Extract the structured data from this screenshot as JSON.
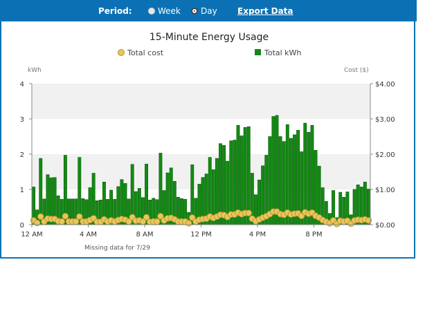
{
  "toolbar": {
    "period_label": "Period:",
    "options": [
      "Week",
      "Day"
    ],
    "selected": "Day",
    "export_label": "Export Data"
  },
  "colors": {
    "header_bg": "#0b71b4",
    "bar_fill": "#138a13",
    "cost_marker": "#e8c65c",
    "band": "#f1f1f1"
  },
  "chart_data": {
    "type": "bar",
    "title": "15-Minute Energy Usage",
    "legend": {
      "items": [
        "Total cost",
        "Total kWh"
      ],
      "placement": "top"
    },
    "ylabel_left": "kWh",
    "ylabel_right": "Cost ($)",
    "ylim_left": [
      0,
      4
    ],
    "ylim_right": [
      0,
      4
    ],
    "left_ticks": [
      "0",
      "1",
      "2",
      "3",
      "4"
    ],
    "right_ticks": [
      "$0.00",
      "$1.00",
      "$2.00",
      "$3.00",
      "$4.00"
    ],
    "x_ticks": [
      {
        "hour": 0,
        "label": "12 AM"
      },
      {
        "hour": 4,
        "label": "4 AM"
      },
      {
        "hour": 8,
        "label": "8 AM"
      },
      {
        "hour": 12,
        "label": "12 PM"
      },
      {
        "hour": 16,
        "label": "4 PM"
      },
      {
        "hour": 20,
        "label": "8 PM"
      }
    ],
    "x_range_hours": [
      0,
      24
    ],
    "interval_minutes": 15,
    "note": "Missing data for  7/29",
    "series": [
      {
        "name": "Total kWh",
        "type": "bar",
        "values": [
          1.07,
          0.42,
          1.88,
          0.73,
          1.42,
          1.33,
          1.34,
          0.82,
          0.72,
          1.97,
          0.73,
          0.73,
          0.73,
          1.91,
          0.74,
          0.71,
          1.05,
          1.46,
          0.68,
          0.7,
          1.21,
          0.72,
          0.98,
          0.72,
          1.08,
          1.28,
          1.17,
          0.73,
          1.71,
          0.94,
          1.03,
          0.77,
          1.72,
          0.7,
          0.75,
          0.71,
          2.03,
          0.97,
          1.47,
          1.61,
          1.23,
          0.78,
          0.74,
          0.72,
          0.35,
          1.7,
          0.75,
          1.15,
          1.34,
          1.44,
          1.91,
          1.56,
          1.88,
          2.3,
          2.25,
          1.8,
          2.38,
          2.4,
          2.82,
          2.52,
          2.76,
          2.78,
          1.46,
          0.85,
          1.27,
          1.67,
          1.97,
          2.5,
          3.07,
          3.1,
          2.5,
          2.36,
          2.84,
          2.45,
          2.55,
          2.68,
          2.07,
          2.88,
          2.62,
          2.82,
          2.11,
          1.66,
          1.05,
          0.66,
          0.32,
          0.97,
          0.2,
          0.92,
          0.78,
          0.93,
          0.28,
          1.0,
          1.13,
          1.07,
          1.21,
          1.01
        ]
      },
      {
        "name": "Total cost",
        "type": "scatter",
        "values": [
          0.12,
          0.05,
          0.23,
          0.09,
          0.17,
          0.16,
          0.16,
          0.1,
          0.09,
          0.24,
          0.09,
          0.09,
          0.09,
          0.23,
          0.09,
          0.09,
          0.13,
          0.18,
          0.08,
          0.08,
          0.15,
          0.09,
          0.12,
          0.09,
          0.13,
          0.16,
          0.14,
          0.09,
          0.21,
          0.11,
          0.12,
          0.09,
          0.21,
          0.08,
          0.09,
          0.09,
          0.24,
          0.12,
          0.18,
          0.19,
          0.15,
          0.09,
          0.09,
          0.09,
          0.04,
          0.2,
          0.09,
          0.14,
          0.16,
          0.17,
          0.23,
          0.19,
          0.23,
          0.28,
          0.27,
          0.22,
          0.29,
          0.29,
          0.34,
          0.3,
          0.33,
          0.33,
          0.17,
          0.1,
          0.15,
          0.2,
          0.24,
          0.3,
          0.37,
          0.37,
          0.3,
          0.28,
          0.34,
          0.29,
          0.31,
          0.32,
          0.25,
          0.35,
          0.31,
          0.34,
          0.25,
          0.2,
          0.13,
          0.08,
          0.04,
          0.12,
          0.02,
          0.11,
          0.09,
          0.11,
          0.03,
          0.12,
          0.14,
          0.13,
          0.15,
          0.12
        ]
      }
    ]
  }
}
